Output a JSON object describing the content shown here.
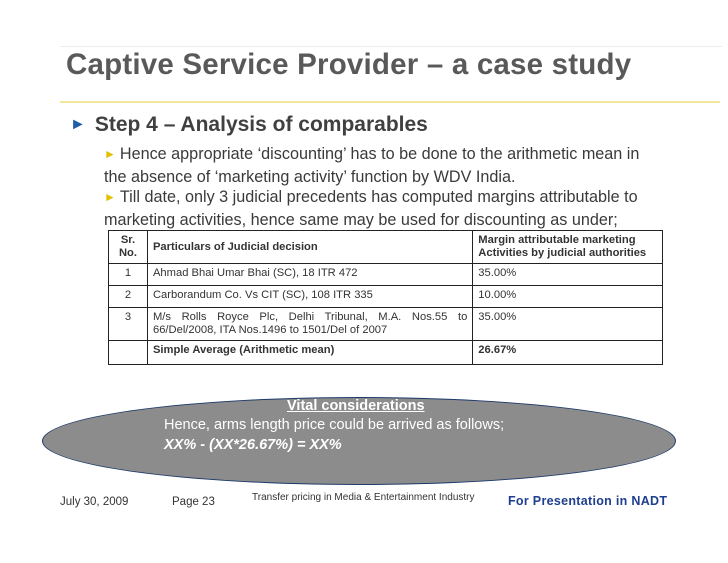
{
  "slide": {
    "title": "Captive Service Provider – a case study",
    "step_heading": "Step 4 – Analysis of comparables",
    "bullet_arrow": "►",
    "sub_arrow": "►",
    "paragraph1": "Hence appropriate ‘discounting’ has to be done to the arithmetic mean in the absence of ‘marketing activity’ function by WDV India.",
    "paragraph2": "Till date, only 3 judicial precedents has computed margins attributable to marketing activities, hence same may be used for discounting as under;"
  },
  "table": {
    "headers": {
      "sr": "Sr. No.",
      "particulars": "Particulars of Judicial decision",
      "margin": "Margin attributable marketing Activities by judicial authorities"
    },
    "rows": [
      {
        "sr": "1",
        "particulars": "Ahmad Bhai Umar Bhai (SC), 18 ITR 472",
        "margin": "35.00%"
      },
      {
        "sr": "2",
        "particulars": "Carborandum Co. Vs CIT (SC), 108 ITR 335",
        "margin": "10.00%"
      },
      {
        "sr": "3",
        "particulars": "M/s Rolls Royce Plc, Delhi Tribunal, M.A. Nos.55 to 66/Del/2008, ITA Nos.1496 to 1501/Del of 2007",
        "margin": "35.00%"
      }
    ],
    "average": {
      "label": "Simple Average (Arithmetic mean)",
      "value": "26.67%"
    }
  },
  "callout": {
    "heading": "Vital considerations",
    "line1": "Hence, arms length price could be arrived as follows;",
    "line2": "XX% - (XX*26.67%) = XX%"
  },
  "footer": {
    "date": "July 30, 2009",
    "page": "Page 23",
    "center": "Transfer pricing in Media & Entertainment Industry",
    "right": "For Presentation in NADT"
  },
  "colors": {
    "title": "#595959",
    "step_arrow": "#1f5fa8",
    "sub_arrow": "#e0c000",
    "oval_fill": "#8c8c8c",
    "footer_right": "#1e3f8f"
  }
}
